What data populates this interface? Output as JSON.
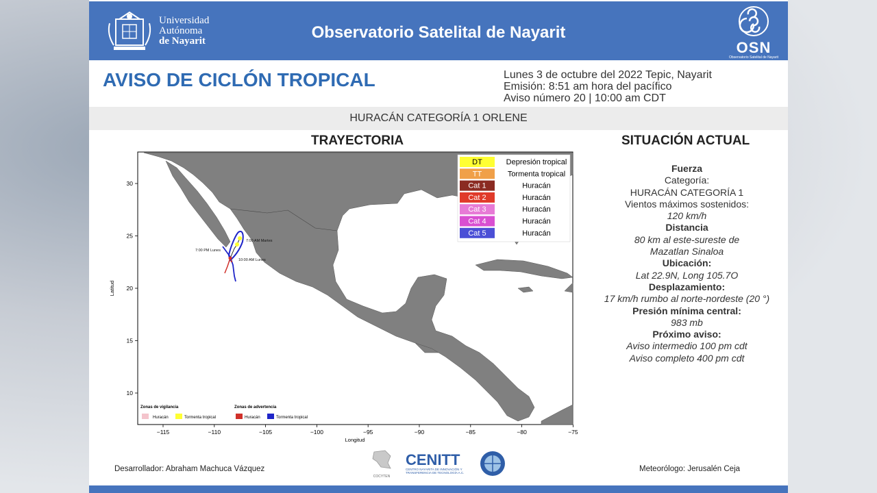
{
  "header": {
    "university_lines": [
      "Universidad",
      "Autónoma",
      "de Nayarit"
    ],
    "title": "Observatorio Satelital de Nayarit",
    "osn_name": "OSN",
    "osn_subtitle": "Observatorio Satelital de Nayarit"
  },
  "notice": {
    "title": "AVISO DE CICLÓN TROPICAL",
    "date_line": "Lunes 3 de octubre del 2022 Tepic, Nayarit",
    "emission_line": "Emisión: 8:51 am hora del pacífico",
    "advisory_line": "Aviso número 20 | 10:00 am CDT",
    "storm_band": "HURACÁN CATEGORÍA 1 ORLENE"
  },
  "trajectory": {
    "title": "TRAYECTORIA",
    "xlabel": "Longitud",
    "ylabel": "Latitud",
    "x_ticks": [
      "−115",
      "−110",
      "−105",
      "−100",
      "−95",
      "−90",
      "−85",
      "−80",
      "−75"
    ],
    "y_ticks": [
      "30",
      "25",
      "20",
      "15",
      "10"
    ],
    "legend": [
      {
        "code": "DT",
        "label": "Depresión tropical",
        "color": "#ffff33",
        "text_color": "#000000"
      },
      {
        "code": "TT",
        "label": "Tormenta tropical",
        "color": "#f0a048",
        "text_color": "#ffffff"
      },
      {
        "code": "Cat 1",
        "label": "Huracán",
        "color": "#8b2b22",
        "text_color": "#ffffff"
      },
      {
        "code": "Cat 2",
        "label": "Huracán",
        "color": "#e03a2a",
        "text_color": "#ffffff"
      },
      {
        "code": "Cat 3",
        "label": "Huracán",
        "color": "#e77ad6",
        "text_color": "#ffffff"
      },
      {
        "code": "Cat 4",
        "label": "Huracán",
        "color": "#d94fd1",
        "text_color": "#ffffff"
      },
      {
        "code": "Cat 5",
        "label": "Huracán",
        "color": "#4b4fd6",
        "text_color": "#ffffff"
      }
    ],
    "annotations": [
      "7:00 AM Martes",
      "7:00 PM Lunes",
      "10:00 AM Lunes"
    ],
    "watch_title": "Zonas de vigilancia",
    "warning_title": "Zonas de advertencia",
    "watch_items": [
      {
        "label": "Huracán",
        "color": "#f4c4cc"
      },
      {
        "label": "Tormenta tropical",
        "color": "#ffff33"
      }
    ],
    "warning_items": [
      {
        "label": "Huracán",
        "color": "#d0302a"
      },
      {
        "label": "Tormenta tropical",
        "color": "#1f25c8"
      }
    ]
  },
  "situation": {
    "title": "SITUACIÓN ACTUAL",
    "fuerza_h": "Fuerza",
    "categoria_label": "Categoría:",
    "categoria_value": "HURACÁN CATEGORÍA 1",
    "vientos_label": "Vientos máximos sostenidos:",
    "vientos_value": "120 km/h",
    "distancia_h": "Distancia",
    "distancia_1": "80 km al este-sureste de",
    "distancia_2": "Mazatlan Sinaloa",
    "ubicacion_h": "Ubicación:",
    "ubicacion_value": "Lat 22.9N, Long 105.7O",
    "desplazamiento_h": "Desplazamiento:",
    "desplazamiento_value": "17 km/h rumbo al norte-nordeste (20 °)",
    "presion_h": "Presión mínima central:",
    "presion_value": "983 mb",
    "proximo_h": "Próximo aviso:",
    "proximo_1": "Aviso intermedio 100  pm cdt",
    "proximo_2": "Aviso completo 400  pm cdt"
  },
  "footer": {
    "developer": "Desarrollador: Abraham Machuca Vázquez",
    "meteorologist": "Meteorólogo: Jerusalén Ceja",
    "cocyten": "COCYTEN",
    "cenitt": "CENITT",
    "cenitt_sub": "CENTRO NAYARITA DE INNOVACIÓN Y TRANSFERENCIA DE TECNOLOGÍA A.C."
  }
}
